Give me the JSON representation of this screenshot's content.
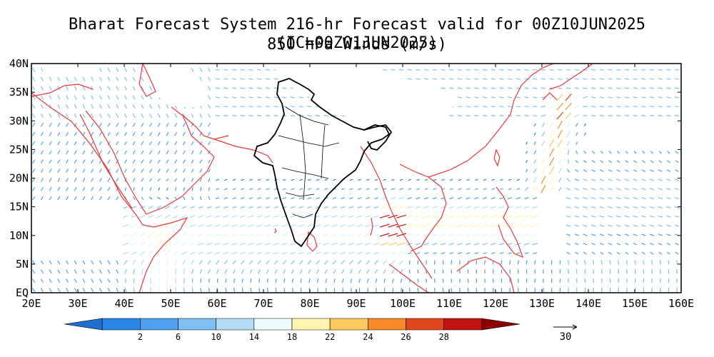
{
  "title_line1": "Bharat Forecast System 216-hr Forecast valid for 00Z10JUN2025 (IC=00Z01JUN2025)",
  "title_line2": "850 hPa Winds (m/s)",
  "map": {
    "lon_range": [
      20,
      160
    ],
    "lat_range": [
      0,
      40
    ],
    "lon_ticks": [
      "20E",
      "30E",
      "40E",
      "50E",
      "60E",
      "70E",
      "80E",
      "90E",
      "100E",
      "110E",
      "120E",
      "130E",
      "140E",
      "150E",
      "160E"
    ],
    "lat_ticks": [
      "EQ",
      "5N",
      "10N",
      "15N",
      "20N",
      "25N",
      "30N",
      "35N",
      "40N"
    ]
  },
  "colorbar": {
    "labels": [
      "2",
      "6",
      "10",
      "14",
      "18",
      "22",
      "24",
      "26",
      "28"
    ],
    "colors": [
      "#1f6fd1",
      "#2b86e8",
      "#4ea0ee",
      "#80bff2",
      "#b4dcf7",
      "#eefcff",
      "#fff4b0",
      "#fbc95e",
      "#f78b29",
      "#e2461c",
      "#c2140f",
      "#8b0000"
    ]
  },
  "reference_vector": {
    "label": "30"
  },
  "colors": {
    "coastline": "#e8383a",
    "india_border": "#000000",
    "frame": "#000000"
  }
}
